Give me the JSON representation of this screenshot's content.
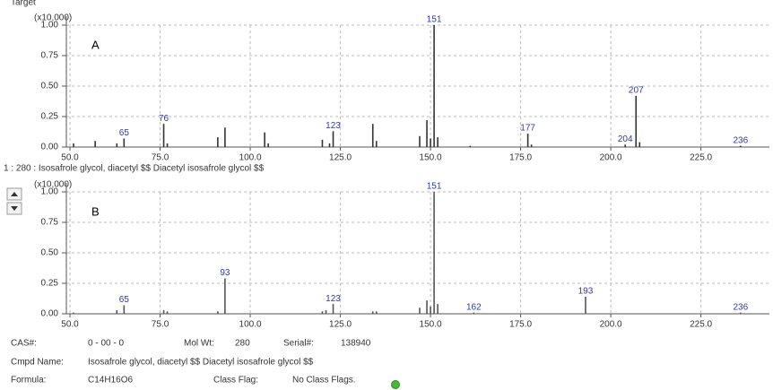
{
  "header": "Target",
  "chart_data": [
    {
      "type": "spectrum",
      "title": "A",
      "y_scale_label": "(x10,000)",
      "color": "#333333",
      "label_color": "#2b3aa8",
      "grid": true,
      "xlim": [
        49,
        244
      ],
      "ylim": [
        0,
        1
      ],
      "xticks": [
        {
          "value": 50,
          "label": "50.0"
        },
        {
          "value": 75,
          "label": "75.0"
        },
        {
          "value": 100,
          "label": "100.0"
        },
        {
          "value": 125,
          "label": "125.0"
        },
        {
          "value": 150,
          "label": "150.0"
        },
        {
          "value": 175,
          "label": "175.0"
        },
        {
          "value": 200,
          "label": "200.0"
        },
        {
          "value": 225,
          "label": "225.0"
        }
      ],
      "yticks": [
        {
          "value": 0,
          "label": "0.00"
        },
        {
          "value": 0.25,
          "label": "0.25"
        },
        {
          "value": 0.5,
          "label": "0.50"
        },
        {
          "value": 0.75,
          "label": "0.75"
        },
        {
          "value": 1,
          "label": "1.00"
        }
      ],
      "x": [
        51,
        57,
        63,
        65,
        76,
        77,
        91,
        93,
        104,
        105,
        120,
        122,
        123,
        134,
        135,
        147,
        149,
        150,
        151,
        152,
        161,
        177,
        178,
        204,
        207,
        208,
        236
      ],
      "values": [
        0.03,
        0.05,
        0.03,
        0.07,
        0.19,
        0.03,
        0.08,
        0.16,
        0.12,
        0.03,
        0.06,
        0.03,
        0.13,
        0.19,
        0.05,
        0.09,
        0.22,
        0.07,
        1.0,
        0.08,
        0.01,
        0.11,
        0.02,
        0.02,
        0.42,
        0.04,
        0.01
      ],
      "peak_labels": [
        null,
        null,
        null,
        "65",
        "76",
        null,
        null,
        null,
        null,
        null,
        null,
        null,
        "123",
        null,
        null,
        null,
        null,
        null,
        "151",
        null,
        null,
        "177",
        null,
        "204",
        "207",
        null,
        "236"
      ]
    },
    {
      "type": "spectrum",
      "title": "B",
      "y_scale_label": "(x10,000)",
      "color": "#555555",
      "label_color": "#2b3aa8",
      "grid": true,
      "xlim": [
        49,
        244
      ],
      "ylim": [
        0,
        1
      ],
      "xticks": [
        {
          "value": 50,
          "label": "50.0"
        },
        {
          "value": 75,
          "label": "75.0"
        },
        {
          "value": 100,
          "label": "100.0"
        },
        {
          "value": 125,
          "label": "125.0"
        },
        {
          "value": 150,
          "label": "150.0"
        },
        {
          "value": 175,
          "label": "175.0"
        },
        {
          "value": 200,
          "label": "200.0"
        },
        {
          "value": 225,
          "label": "225.0"
        }
      ],
      "yticks": [
        {
          "value": 0,
          "label": "0.00"
        },
        {
          "value": 0.25,
          "label": "0.25"
        },
        {
          "value": 0.5,
          "label": "0.50"
        },
        {
          "value": 0.75,
          "label": "0.75"
        },
        {
          "value": 1,
          "label": "1.00"
        }
      ],
      "x": [
        51,
        63,
        65,
        76,
        77,
        91,
        93,
        120,
        121,
        123,
        134,
        135,
        147,
        149,
        150,
        151,
        152,
        162,
        193,
        236
      ],
      "values": [
        0.01,
        0.03,
        0.07,
        0.03,
        0.02,
        0.02,
        0.29,
        0.02,
        0.03,
        0.08,
        0.02,
        0.02,
        0.05,
        0.11,
        0.06,
        1.0,
        0.08,
        0.01,
        0.14,
        0.01
      ],
      "peak_labels": [
        null,
        null,
        "65",
        null,
        null,
        null,
        "93",
        null,
        null,
        "123",
        null,
        null,
        null,
        null,
        null,
        "151",
        null,
        "162",
        "193",
        "236"
      ]
    }
  ],
  "hit_title": "1 : 280 : Isosafrole glycol, diacetyl $$ Diacetyl isosafrole glycol $$",
  "info": [
    [
      [
        "CAS#:",
        "0 - 00 - 0"
      ],
      [
        "Mol Wt:",
        "280"
      ],
      [
        "Serial#:",
        "138940"
      ]
    ],
    [
      [
        "Cmpd Name:",
        "Isosafrole glycol, diacetyl $$ Diacetyl isosafrole glycol $$"
      ]
    ],
    [
      [
        "Formula:",
        "C14H16O6"
      ],
      [
        "Class Flag:",
        "No Class Flags."
      ]
    ]
  ]
}
